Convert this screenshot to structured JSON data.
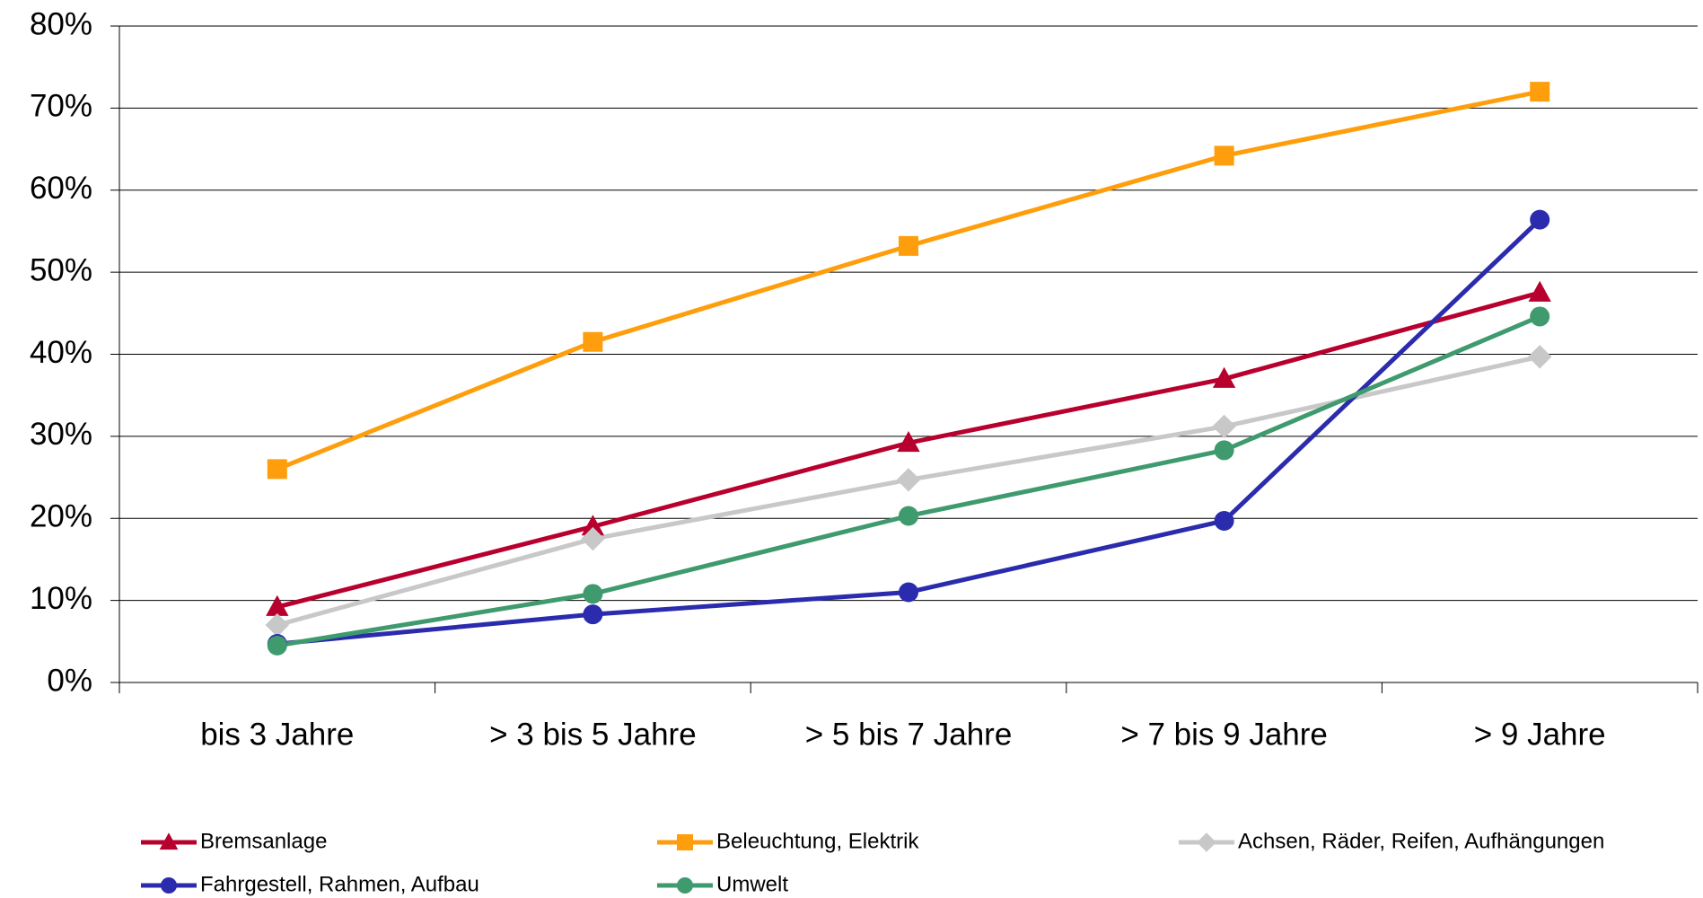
{
  "chart_data": {
    "type": "line",
    "categories": [
      "bis 3 Jahre",
      "> 3 bis 5 Jahre",
      "> 5 bis 7 Jahre",
      "> 7 bis 9 Jahre",
      "> 9 Jahre"
    ],
    "series": [
      {
        "name": "Bremsanlage",
        "color": "#b8002e",
        "marker": "triangle",
        "values": [
          9.2,
          19,
          29.2,
          37,
          47.5
        ]
      },
      {
        "name": "Beleuchtung, Elektrik",
        "color": "#ff9e0d",
        "marker": "square",
        "values": [
          26,
          41.5,
          53.2,
          64.2,
          72
        ]
      },
      {
        "name": "Achsen, Räder, Reifen, Aufhängungen",
        "color": "#c8c8c8",
        "marker": "diamond",
        "values": [
          7,
          17.5,
          24.7,
          31.2,
          39.7
        ]
      },
      {
        "name": "Fahrgestell, Rahmen, Aufbau",
        "color": "#2b2bad",
        "marker": "circle",
        "values": [
          4.7,
          8.3,
          11,
          19.7,
          56.4
        ]
      },
      {
        "name": "Umwelt",
        "color": "#3f9a6e",
        "marker": "circle",
        "values": [
          4.5,
          10.8,
          20.3,
          28.3,
          44.6
        ]
      }
    ],
    "ylim": [
      0,
      80
    ],
    "yticks": [
      {
        "value": 0,
        "label": "0%"
      },
      {
        "value": 10,
        "label": "10%"
      },
      {
        "value": 20,
        "label": "20%"
      },
      {
        "value": 30,
        "label": "30%"
      },
      {
        "value": 40,
        "label": "40%"
      },
      {
        "value": 50,
        "label": "50%"
      },
      {
        "value": 60,
        "label": "60%"
      },
      {
        "value": 70,
        "label": "70%"
      },
      {
        "value": 80,
        "label": "80%"
      }
    ],
    "grid": true,
    "legend": "bottom"
  }
}
